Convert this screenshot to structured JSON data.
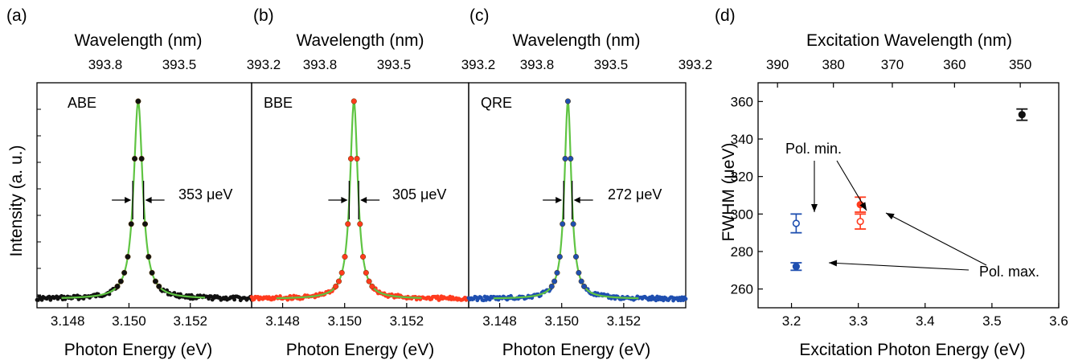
{
  "panels": [
    {
      "label": "(a)",
      "tag": "ABE",
      "top_axis_label": "Wavelength (nm)",
      "bottom_axis_label": "Photon Energy (eV)",
      "fwhm_label": "353 μeV",
      "point_color": "#111111"
    },
    {
      "label": "(b)",
      "tag": "BBE",
      "top_axis_label": "Wavelength (nm)",
      "bottom_axis_label": "Photon Energy (eV)",
      "fwhm_label": "305 μeV",
      "point_color": "#ff3b1e"
    },
    {
      "label": "(c)",
      "tag": "QRE",
      "top_axis_label": "Wavelength (nm)",
      "bottom_axis_label": "Photon Energy (eV)",
      "fwhm_label": "272 μeV",
      "point_color": "#1f4fb0"
    },
    {
      "label": "(d)",
      "top_axis_label": "Excitation Wavelength (nm)",
      "bottom_axis_label": "Excitation Photon Energy (eV)",
      "y_axis_label": "FWHM (μeV)",
      "annotation_min": "Pol. min.",
      "annotation_max": "Pol. max."
    }
  ],
  "shared_y_label": "Intensity (a. u.)",
  "colors": {
    "fit": "#5fc442",
    "abe": "#111111",
    "bbe": "#ff3b1e",
    "qre": "#1f4fb0"
  },
  "chart_data": [
    {
      "type": "scatter",
      "panel": "(a)",
      "xlim": [
        3.147,
        3.154
      ],
      "xticks": [
        3.148,
        3.15,
        3.152
      ],
      "xtick_labels": [
        "3.148",
        "3.150",
        "3.152"
      ],
      "top_ticks": [
        393.8,
        393.5,
        393.2
      ],
      "top_tick_labels": [
        "393.8",
        "393.5",
        "393.2"
      ],
      "peak_center": 3.1503,
      "fwhm_ev": 0.000353,
      "series": [
        {
          "name": "ABE",
          "color": "#111111"
        }
      ],
      "fit_color": "#5fc442"
    },
    {
      "type": "scatter",
      "panel": "(b)",
      "xlim": [
        3.147,
        3.154
      ],
      "xticks": [
        3.148,
        3.15,
        3.152
      ],
      "xtick_labels": [
        "3.148",
        "3.150",
        "3.152"
      ],
      "top_ticks": [
        393.8,
        393.5,
        393.2
      ],
      "top_tick_labels": [
        "393.8",
        "393.5",
        "393.2"
      ],
      "peak_center": 3.1503,
      "fwhm_ev": 0.000305,
      "series": [
        {
          "name": "BBE",
          "color": "#ff3b1e"
        }
      ],
      "fit_color": "#5fc442"
    },
    {
      "type": "scatter",
      "panel": "(c)",
      "xlim": [
        3.147,
        3.154
      ],
      "xticks": [
        3.148,
        3.15,
        3.152
      ],
      "xtick_labels": [
        "3.148",
        "3.150",
        "3.152"
      ],
      "top_ticks": [
        393.8,
        393.5,
        393.2
      ],
      "top_tick_labels": [
        "393.8",
        "393.5",
        "393.2"
      ],
      "peak_center": 3.1502,
      "fwhm_ev": 0.000272,
      "series": [
        {
          "name": "QRE",
          "color": "#1f4fb0"
        }
      ],
      "fit_color": "#5fc442"
    },
    {
      "type": "scatter",
      "panel": "(d)",
      "xlim": [
        3.15,
        3.6
      ],
      "ylim": [
        250,
        370
      ],
      "xticks": [
        3.2,
        3.3,
        3.4,
        3.5,
        3.6
      ],
      "yticks": [
        260,
        280,
        300,
        320,
        340,
        360
      ],
      "top_ticks": [
        390,
        380,
        370,
        360,
        350
      ],
      "points": [
        {
          "x": 3.545,
          "y": 353,
          "err": 3,
          "color": "#111111",
          "filled": true
        },
        {
          "x": 3.207,
          "y": 295,
          "err": 5,
          "color": "#1f4fb0",
          "filled": false
        },
        {
          "x": 3.207,
          "y": 272,
          "err": 2,
          "color": "#1f4fb0",
          "filled": true
        },
        {
          "x": 3.303,
          "y": 305,
          "err": 4,
          "color": "#ff3b1e",
          "filled": true
        },
        {
          "x": 3.303,
          "y": 296,
          "err": 4,
          "color": "#ff3b1e",
          "filled": false
        }
      ]
    }
  ]
}
